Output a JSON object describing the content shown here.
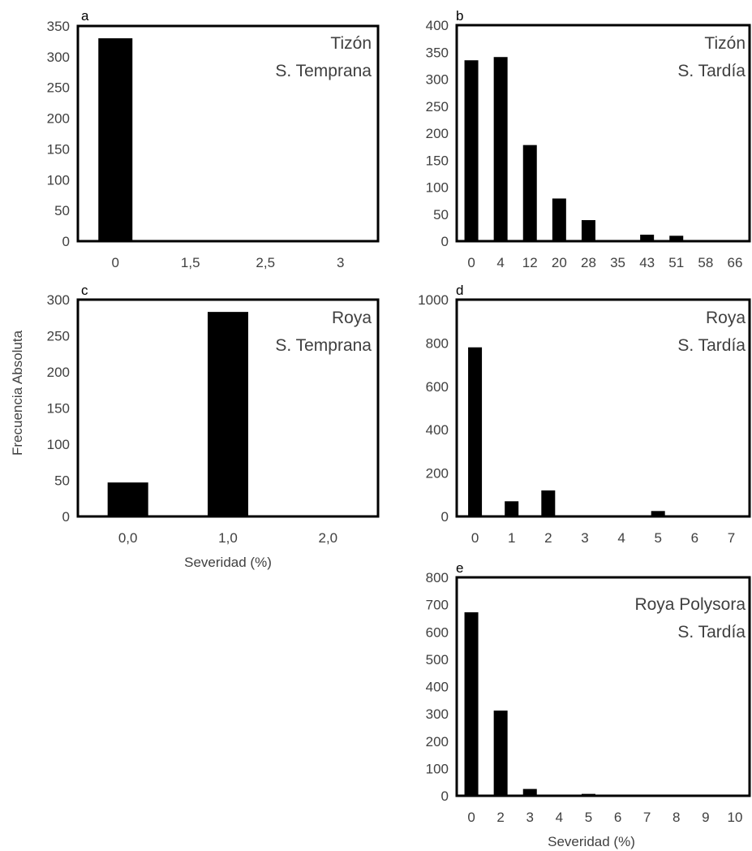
{
  "figure": {
    "ylabel_shared": "Frecuencia Absoluta",
    "xlabel_c": "Severidad (%)",
    "xlabel_e": "Severidad (%)"
  },
  "colors": {
    "bar": "#000000",
    "frame": "#000000",
    "text": "#404040"
  },
  "chart_data": [
    {
      "id": "a",
      "type": "bar",
      "panel_letter": "a",
      "annotation": [
        "Tizón",
        "S. Temprana"
      ],
      "categories": [
        "0",
        "1,5",
        "2,5",
        "3"
      ],
      "values": [
        330,
        0,
        0,
        0
      ],
      "ylim": [
        0,
        350
      ],
      "yticks": [
        0,
        50,
        100,
        150,
        200,
        250,
        300,
        350
      ],
      "ylabel": "",
      "xlabel": "",
      "grid": false,
      "legend": "none"
    },
    {
      "id": "b",
      "type": "bar",
      "panel_letter": "b",
      "annotation": [
        "Tizón",
        "S. Tardía"
      ],
      "categories": [
        "0",
        "4",
        "12",
        "20",
        "28",
        "35",
        "43",
        "51",
        "58",
        "66"
      ],
      "values": [
        335,
        341,
        178,
        79,
        39,
        0,
        12,
        10,
        0,
        0
      ],
      "ylim": [
        0,
        400
      ],
      "yticks": [
        0,
        50,
        100,
        150,
        200,
        250,
        300,
        350,
        400
      ],
      "ylabel": "",
      "xlabel": "",
      "grid": false,
      "legend": "none"
    },
    {
      "id": "c",
      "type": "bar",
      "panel_letter": "c",
      "annotation": [
        "Roya",
        "S. Temprana"
      ],
      "categories": [
        "0,0",
        "1,0",
        "2,0"
      ],
      "values": [
        47,
        283,
        0
      ],
      "ylim": [
        0,
        300
      ],
      "yticks": [
        0,
        50,
        100,
        150,
        200,
        250,
        300
      ],
      "ylabel": "Frecuencia Absoluta",
      "xlabel": "Severidad (%)",
      "grid": false,
      "legend": "none"
    },
    {
      "id": "d",
      "type": "bar",
      "panel_letter": "d",
      "annotation": [
        "Roya",
        "S. Tardía"
      ],
      "categories": [
        "0",
        "1",
        "2",
        "3",
        "4",
        "5",
        "6",
        "7"
      ],
      "values": [
        780,
        70,
        120,
        0,
        0,
        25,
        0,
        0
      ],
      "ylim": [
        0,
        1000
      ],
      "yticks": [
        0,
        200,
        400,
        600,
        800,
        1000
      ],
      "ylabel": "",
      "xlabel": "",
      "grid": false,
      "legend": "none"
    },
    {
      "id": "e",
      "type": "bar",
      "panel_letter": "e",
      "annotation": [
        "Roya Polysora",
        "S. Tardía"
      ],
      "categories": [
        "0",
        "2",
        "3",
        "4",
        "5",
        "6",
        "7",
        "8",
        "9",
        "10"
      ],
      "values": [
        672,
        312,
        25,
        0,
        7,
        0,
        2,
        0,
        2,
        0
      ],
      "ylim": [
        0,
        800
      ],
      "yticks": [
        0,
        100,
        200,
        300,
        400,
        500,
        600,
        700,
        800
      ],
      "ylabel": "",
      "xlabel": "Severidad (%)",
      "grid": false,
      "legend": "none"
    }
  ]
}
